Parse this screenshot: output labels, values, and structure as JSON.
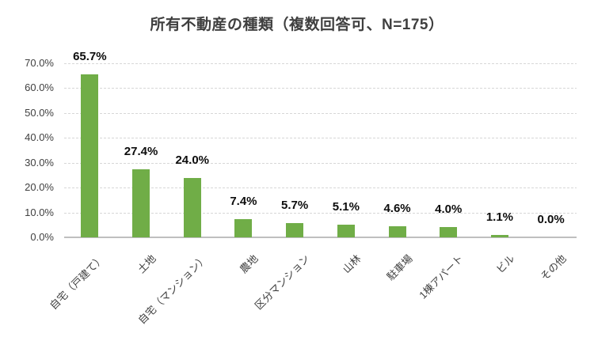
{
  "title": "所有不動産の種類（複数回答可、N=175）",
  "chart_data": {
    "type": "bar",
    "title": "所有不動産の種類（複数回答可、N=175）",
    "categories": [
      "自宅（戸建て）",
      "土地",
      "自宅（マンション）",
      "農地",
      "区分マンション",
      "山林",
      "駐車場",
      "1棟アパート",
      "ビル",
      "その他"
    ],
    "values": [
      65.7,
      27.4,
      24.0,
      7.4,
      5.7,
      5.1,
      4.6,
      4.0,
      1.1,
      0.0
    ],
    "data_labels": [
      "65.7%",
      "27.4%",
      "24.0%",
      "7.4%",
      "5.7%",
      "5.1%",
      "4.6%",
      "4.0%",
      "1.1%",
      "0.0%"
    ],
    "yticks": [
      {
        "value": 0,
        "label": "0.0%"
      },
      {
        "value": 10,
        "label": "10.0%"
      },
      {
        "value": 20,
        "label": "20.0%"
      },
      {
        "value": 30,
        "label": "30.0%"
      },
      {
        "value": 40,
        "label": "40.0%"
      },
      {
        "value": 50,
        "label": "50.0%"
      },
      {
        "value": 60,
        "label": "60.0%"
      },
      {
        "value": 70,
        "label": "70.0%"
      }
    ],
    "ylim": [
      0,
      70
    ],
    "xlabel": "",
    "ylabel": "",
    "grid": true,
    "legend": "none",
    "bar_color": "#70AD47"
  },
  "colors": {
    "bar": "#70AD47",
    "title_text": "#3F3F3F",
    "axis_text": "#404040",
    "data_label_text": "#0D0D0D",
    "gridline": "#D7D7D7",
    "axis_line": "#BFBFBF",
    "background": "#FFFFFF"
  }
}
